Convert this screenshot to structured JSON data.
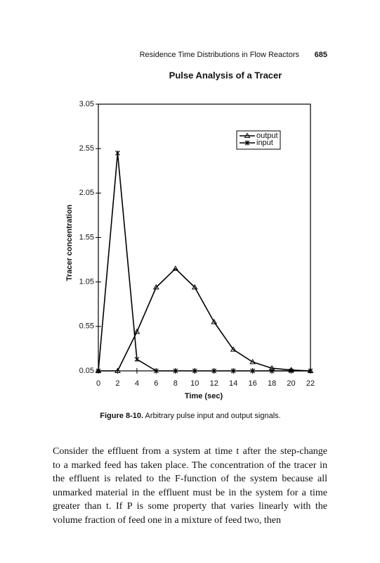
{
  "header": {
    "running_title": "Residence Time Distributions in Flow Reactors",
    "page_number": "685"
  },
  "chart_data": {
    "type": "line",
    "title": "Pulse Analysis of a Tracer",
    "x_label": "Time (sec)",
    "y_label": "Tracer concentration",
    "x": [
      0,
      2,
      4,
      6,
      8,
      10,
      12,
      14,
      16,
      18,
      20,
      22
    ],
    "series": [
      {
        "name": "output",
        "color": "#000000",
        "marker": "triangle",
        "values": [
          0.05,
          0.05,
          0.49,
          0.99,
          1.2,
          0.99,
          0.6,
          0.29,
          0.15,
          0.08,
          0.06,
          0.05
        ]
      },
      {
        "name": "input",
        "color": "#000000",
        "marker": "star",
        "values": [
          0.05,
          2.5,
          0.18,
          0.05,
          0.05,
          0.05,
          0.05,
          0.05,
          0.05,
          0.05,
          0.05,
          0.05
        ]
      }
    ],
    "xlim": [
      0,
      22
    ],
    "xticks": [
      0,
      2,
      4,
      6,
      8,
      10,
      12,
      14,
      16,
      18,
      20,
      22
    ],
    "ylim": [
      0.05,
      3.05
    ],
    "yticks": [
      0.05,
      0.55,
      1.05,
      1.55,
      2.05,
      2.55,
      3.05
    ],
    "grid": false,
    "legend": "upper right"
  },
  "caption": {
    "label": "Figure 8-10.",
    "text": "Arbitrary pulse input and output signals."
  },
  "body": {
    "lines": [
      "Consider the effluent from a system at time t after the step-change",
      "to a marked feed has taken place. The concentration of the tracer in",
      "the effluent is related to the F-function of the system because all",
      "unmarked material in the effluent must be in the system for a time",
      "greater than t. If P is some property that varies linearly with the",
      "volume fraction of feed one in a mixture of feed two, then"
    ]
  }
}
